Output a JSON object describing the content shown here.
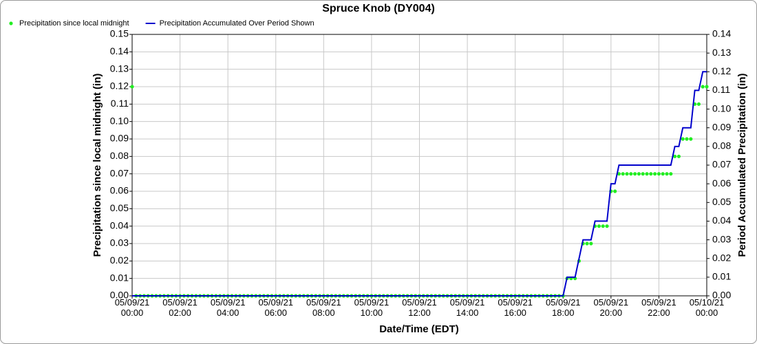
{
  "chart_data": {
    "type": "line",
    "title": "Spruce Knob (DY004)",
    "x_label": "Date/Time (EDT)",
    "y_label": "Precipitation since local midnight (in)",
    "y2_label": "Period Accumulated Precipitation (in)",
    "grid": true,
    "xlim": [
      0,
      1440
    ],
    "xticks": [
      {
        "value": 0,
        "label": "05/09/21\n00:00"
      },
      {
        "value": 120,
        "label": "05/09/21\n02:00"
      },
      {
        "value": 240,
        "label": "05/09/21\n04:00"
      },
      {
        "value": 360,
        "label": "05/09/21\n06:00"
      },
      {
        "value": 480,
        "label": "05/09/21\n08:00"
      },
      {
        "value": 600,
        "label": "05/09/21\n10:00"
      },
      {
        "value": 720,
        "label": "05/09/21\n12:00"
      },
      {
        "value": 840,
        "label": "05/09/21\n14:00"
      },
      {
        "value": 960,
        "label": "05/09/21\n16:00"
      },
      {
        "value": 1080,
        "label": "05/09/21\n18:00"
      },
      {
        "value": 1200,
        "label": "05/09/21\n20:00"
      },
      {
        "value": 1320,
        "label": "05/09/21\n22:00"
      },
      {
        "value": 1440,
        "label": "05/10/21\n00:00"
      }
    ],
    "ylim": [
      0,
      0.15
    ],
    "yticks": [
      {
        "value": 0,
        "label": "0.00"
      },
      {
        "value": 0.01,
        "label": "0.01"
      },
      {
        "value": 0.02,
        "label": "0.02"
      },
      {
        "value": 0.03,
        "label": "0.03"
      },
      {
        "value": 0.04,
        "label": "0.04"
      },
      {
        "value": 0.05,
        "label": "0.05"
      },
      {
        "value": 0.06,
        "label": "0.06"
      },
      {
        "value": 0.07,
        "label": "0.07"
      },
      {
        "value": 0.08,
        "label": "0.08"
      },
      {
        "value": 0.09,
        "label": "0.09"
      },
      {
        "value": 0.1,
        "label": "0.10"
      },
      {
        "value": 0.11,
        "label": "0.11"
      },
      {
        "value": 0.12,
        "label": "0.12"
      },
      {
        "value": 0.13,
        "label": "0.13"
      },
      {
        "value": 0.14,
        "label": "0.14"
      },
      {
        "value": 0.15,
        "label": "0.15"
      }
    ],
    "y2lim": [
      0,
      0.14
    ],
    "y2ticks": [
      {
        "value": 0,
        "label": "0.00"
      },
      {
        "value": 0.01,
        "label": "0.01"
      },
      {
        "value": 0.02,
        "label": "0.02"
      },
      {
        "value": 0.03,
        "label": "0.03"
      },
      {
        "value": 0.04,
        "label": "0.04"
      },
      {
        "value": 0.05,
        "label": "0.05"
      },
      {
        "value": 0.06,
        "label": "0.06"
      },
      {
        "value": 0.07,
        "label": "0.07"
      },
      {
        "value": 0.08,
        "label": "0.08"
      },
      {
        "value": 0.09,
        "label": "0.09"
      },
      {
        "value": 0.1,
        "label": "0.10"
      },
      {
        "value": 0.11,
        "label": "0.11"
      },
      {
        "value": 0.12,
        "label": "0.12"
      },
      {
        "value": 0.13,
        "label": "0.13"
      },
      {
        "value": 0.14,
        "label": "0.14"
      }
    ],
    "x": [
      0,
      10,
      20,
      30,
      40,
      50,
      60,
      70,
      80,
      90,
      100,
      110,
      120,
      130,
      140,
      150,
      160,
      170,
      180,
      190,
      200,
      210,
      220,
      230,
      240,
      250,
      260,
      270,
      280,
      290,
      300,
      310,
      320,
      330,
      340,
      350,
      360,
      370,
      380,
      390,
      400,
      410,
      420,
      430,
      440,
      450,
      460,
      470,
      480,
      490,
      500,
      510,
      520,
      530,
      540,
      550,
      560,
      570,
      580,
      590,
      600,
      610,
      620,
      630,
      640,
      650,
      660,
      670,
      680,
      690,
      700,
      710,
      720,
      730,
      740,
      750,
      760,
      770,
      780,
      790,
      800,
      810,
      820,
      830,
      840,
      850,
      860,
      870,
      880,
      890,
      900,
      910,
      920,
      930,
      940,
      950,
      960,
      970,
      980,
      990,
      1000,
      1010,
      1020,
      1030,
      1040,
      1050,
      1060,
      1070,
      1080,
      1090,
      1100,
      1110,
      1120,
      1130,
      1140,
      1150,
      1160,
      1170,
      1180,
      1190,
      1200,
      1210,
      1220,
      1230,
      1240,
      1250,
      1260,
      1270,
      1280,
      1290,
      1300,
      1310,
      1320,
      1330,
      1340,
      1350,
      1360,
      1370,
      1380,
      1390,
      1400,
      1410,
      1420,
      1430,
      1440
    ],
    "series": [
      {
        "name": "Precipitation since local midnight",
        "color": "#22ee22",
        "style": "markers",
        "axis": "y",
        "values": [
          0.12,
          0,
          0,
          0,
          0,
          0,
          0,
          0,
          0,
          0,
          0,
          0,
          0,
          0,
          0,
          0,
          0,
          0,
          0,
          0,
          0,
          0,
          0,
          0,
          0,
          0,
          0,
          0,
          0,
          0,
          0,
          0,
          0,
          0,
          0,
          0,
          0,
          0,
          0,
          0,
          0,
          0,
          0,
          0,
          0,
          0,
          0,
          0,
          0,
          0,
          0,
          0,
          0,
          0,
          0,
          0,
          0,
          0,
          0,
          0,
          0,
          0,
          0,
          0,
          0,
          0,
          0,
          0,
          0,
          0,
          0,
          0,
          0,
          0,
          0,
          0,
          0,
          0,
          0,
          0,
          0,
          0,
          0,
          0,
          0,
          0,
          0,
          0,
          0,
          0,
          0,
          0,
          0,
          0,
          0,
          0,
          0,
          0,
          0,
          0,
          0,
          0,
          0,
          0,
          0,
          0,
          0,
          0,
          0,
          0.01,
          0.01,
          0.01,
          0.02,
          0.03,
          0.03,
          0.03,
          0.04,
          0.04,
          0.04,
          0.04,
          0.06,
          0.06,
          0.07,
          0.07,
          0.07,
          0.07,
          0.07,
          0.07,
          0.07,
          0.07,
          0.07,
          0.07,
          0.07,
          0.07,
          0.07,
          0.07,
          0.08,
          0.08,
          0.09,
          0.09,
          0.09,
          0.11,
          0.11,
          0.12,
          0.12
        ]
      },
      {
        "name": "Precipitation Accumulated Over Period Shown",
        "color": "#0000cc",
        "style": "line",
        "axis": "y2",
        "values": [
          0,
          0,
          0,
          0,
          0,
          0,
          0,
          0,
          0,
          0,
          0,
          0,
          0,
          0,
          0,
          0,
          0,
          0,
          0,
          0,
          0,
          0,
          0,
          0,
          0,
          0,
          0,
          0,
          0,
          0,
          0,
          0,
          0,
          0,
          0,
          0,
          0,
          0,
          0,
          0,
          0,
          0,
          0,
          0,
          0,
          0,
          0,
          0,
          0,
          0,
          0,
          0,
          0,
          0,
          0,
          0,
          0,
          0,
          0,
          0,
          0,
          0,
          0,
          0,
          0,
          0,
          0,
          0,
          0,
          0,
          0,
          0,
          0,
          0,
          0,
          0,
          0,
          0,
          0,
          0,
          0,
          0,
          0,
          0,
          0,
          0,
          0,
          0,
          0,
          0,
          0,
          0,
          0,
          0,
          0,
          0,
          0,
          0,
          0,
          0,
          0,
          0,
          0,
          0,
          0,
          0,
          0,
          0,
          0,
          0.01,
          0.01,
          0.01,
          0.02,
          0.03,
          0.03,
          0.03,
          0.04,
          0.04,
          0.04,
          0.04,
          0.06,
          0.06,
          0.07,
          0.07,
          0.07,
          0.07,
          0.07,
          0.07,
          0.07,
          0.07,
          0.07,
          0.07,
          0.07,
          0.07,
          0.07,
          0.07,
          0.08,
          0.08,
          0.09,
          0.09,
          0.09,
          0.11,
          0.11,
          0.12,
          0.12
        ]
      }
    ]
  }
}
